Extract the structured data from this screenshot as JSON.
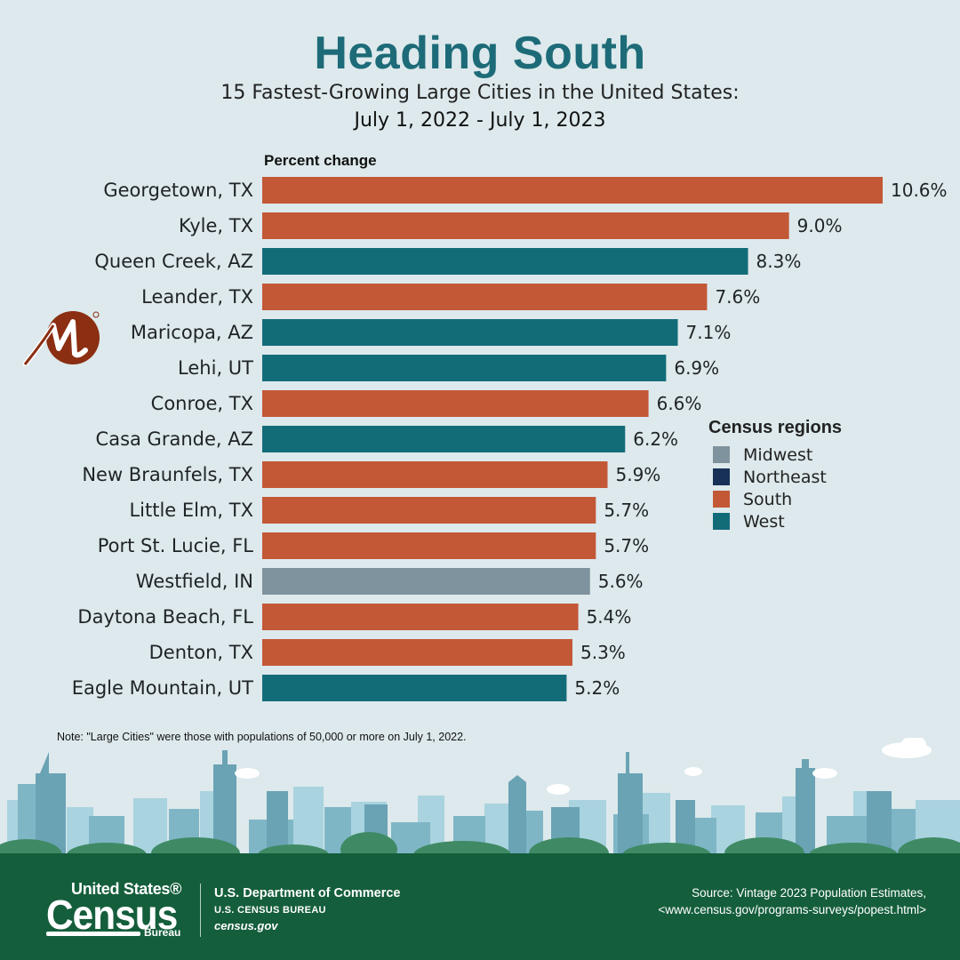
{
  "header": {
    "title": "Heading South",
    "subtitle": "15 Fastest-Growing Large Cities in the United States:",
    "period": "July 1, 2022 - July 1, 2023"
  },
  "chart_data": {
    "type": "bar",
    "orientation": "horizontal",
    "axis_label": "Percent change",
    "categories": [
      "Georgetown, TX",
      "Kyle, TX",
      "Queen Creek, AZ",
      "Leander, TX",
      "Maricopa, AZ",
      "Lehi, UT",
      "Conroe, TX",
      "Casa Grande, AZ",
      "New Braunfels, TX",
      "Little Elm, TX",
      "Port St. Lucie, FL",
      "Westfield, IN",
      "Daytona Beach, FL",
      "Denton, TX",
      "Eagle Mountain, UT"
    ],
    "values": [
      10.6,
      9.0,
      8.3,
      7.6,
      7.1,
      6.9,
      6.6,
      6.2,
      5.9,
      5.7,
      5.7,
      5.6,
      5.4,
      5.3,
      5.2
    ],
    "value_labels": [
      "10.6%",
      "9.0%",
      "8.3%",
      "7.6%",
      "7.1%",
      "6.9%",
      "6.6%",
      "6.2%",
      "5.9%",
      "5.7%",
      "5.7%",
      "5.6%",
      "5.4%",
      "5.3%",
      "5.2%"
    ],
    "regions": [
      "South",
      "South",
      "West",
      "South",
      "West",
      "West",
      "South",
      "West",
      "South",
      "South",
      "South",
      "Midwest",
      "South",
      "South",
      "West"
    ],
    "xlim": [
      0,
      10.6
    ],
    "grid": false,
    "legend_position": "right",
    "legend": {
      "title": "Census regions",
      "items": [
        {
          "name": "Midwest",
          "color": "#7f939e"
        },
        {
          "name": "Northeast",
          "color": "#173158"
        },
        {
          "name": "South",
          "color": "#c35837"
        },
        {
          "name": "West",
          "color": "#126c78"
        }
      ]
    }
  },
  "note": "Note: \"Large Cities\" were those with populations of 50,000 or more on July 1, 2022.",
  "logo_m": {
    "icon": "m-circle-logo",
    "color": "#8b2e12"
  },
  "footer": {
    "logo_top": "United States®",
    "logo_main": "Census",
    "logo_bottom": "Bureau",
    "dept_line1": "U.S. Department of Commerce",
    "dept_line2": "U.S. CENSUS BUREAU",
    "dept_line3": "census.gov",
    "source_line1": "Source: Vintage 2023 Population Estimates,",
    "source_line2": "<www.census.gov/programs-surveys/popest.html>",
    "background": "#155e3c"
  }
}
